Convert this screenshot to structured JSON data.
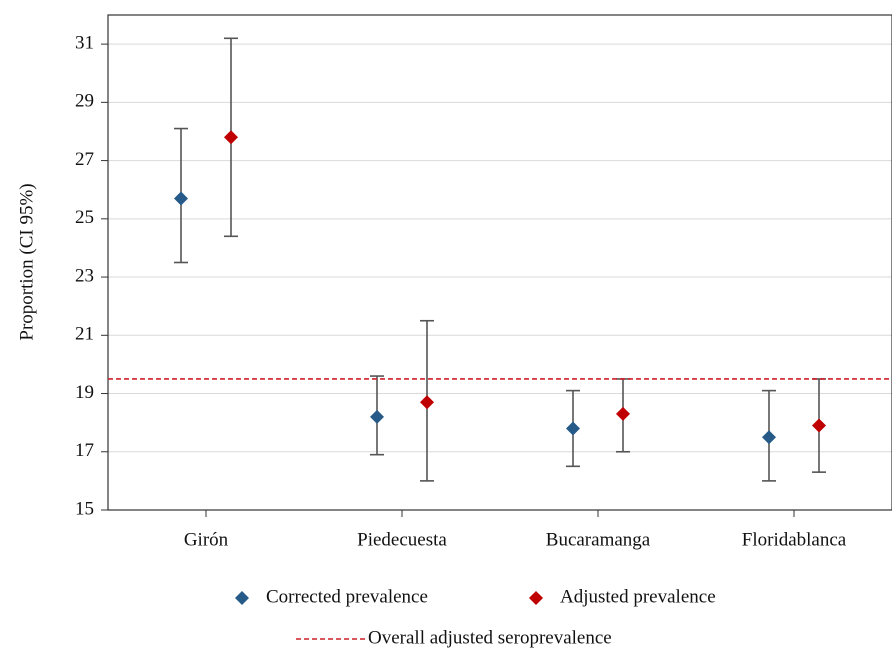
{
  "chart_data": {
    "type": "errorbar",
    "y_label": "Proportion (CI 95%)",
    "categories": [
      "Girón",
      "Piedecuesta",
      "Bucaramanga",
      "Floridablanca"
    ],
    "series": [
      {
        "name": "Corrected prevalence",
        "color": "#265a88",
        "values": [
          25.7,
          18.2,
          17.8,
          17.5
        ],
        "lower": [
          23.5,
          16.9,
          16.5,
          16.0
        ],
        "upper": [
          28.1,
          19.6,
          19.1,
          19.1
        ]
      },
      {
        "name": "Adjusted prevalence",
        "color": "#c00000",
        "values": [
          27.8,
          18.7,
          18.3,
          17.9
        ],
        "lower": [
          24.4,
          16.0,
          17.0,
          16.3
        ],
        "upper": [
          31.2,
          21.5,
          19.5,
          19.5
        ]
      }
    ],
    "reference_line": {
      "value": 19.5,
      "label": "Overall adjusted seroprevalence",
      "color": "#d0202a"
    },
    "ylim": [
      15,
      32
    ],
    "yticks": [
      15,
      17,
      19,
      21,
      23,
      25,
      27,
      29,
      31
    ],
    "grid": true
  }
}
